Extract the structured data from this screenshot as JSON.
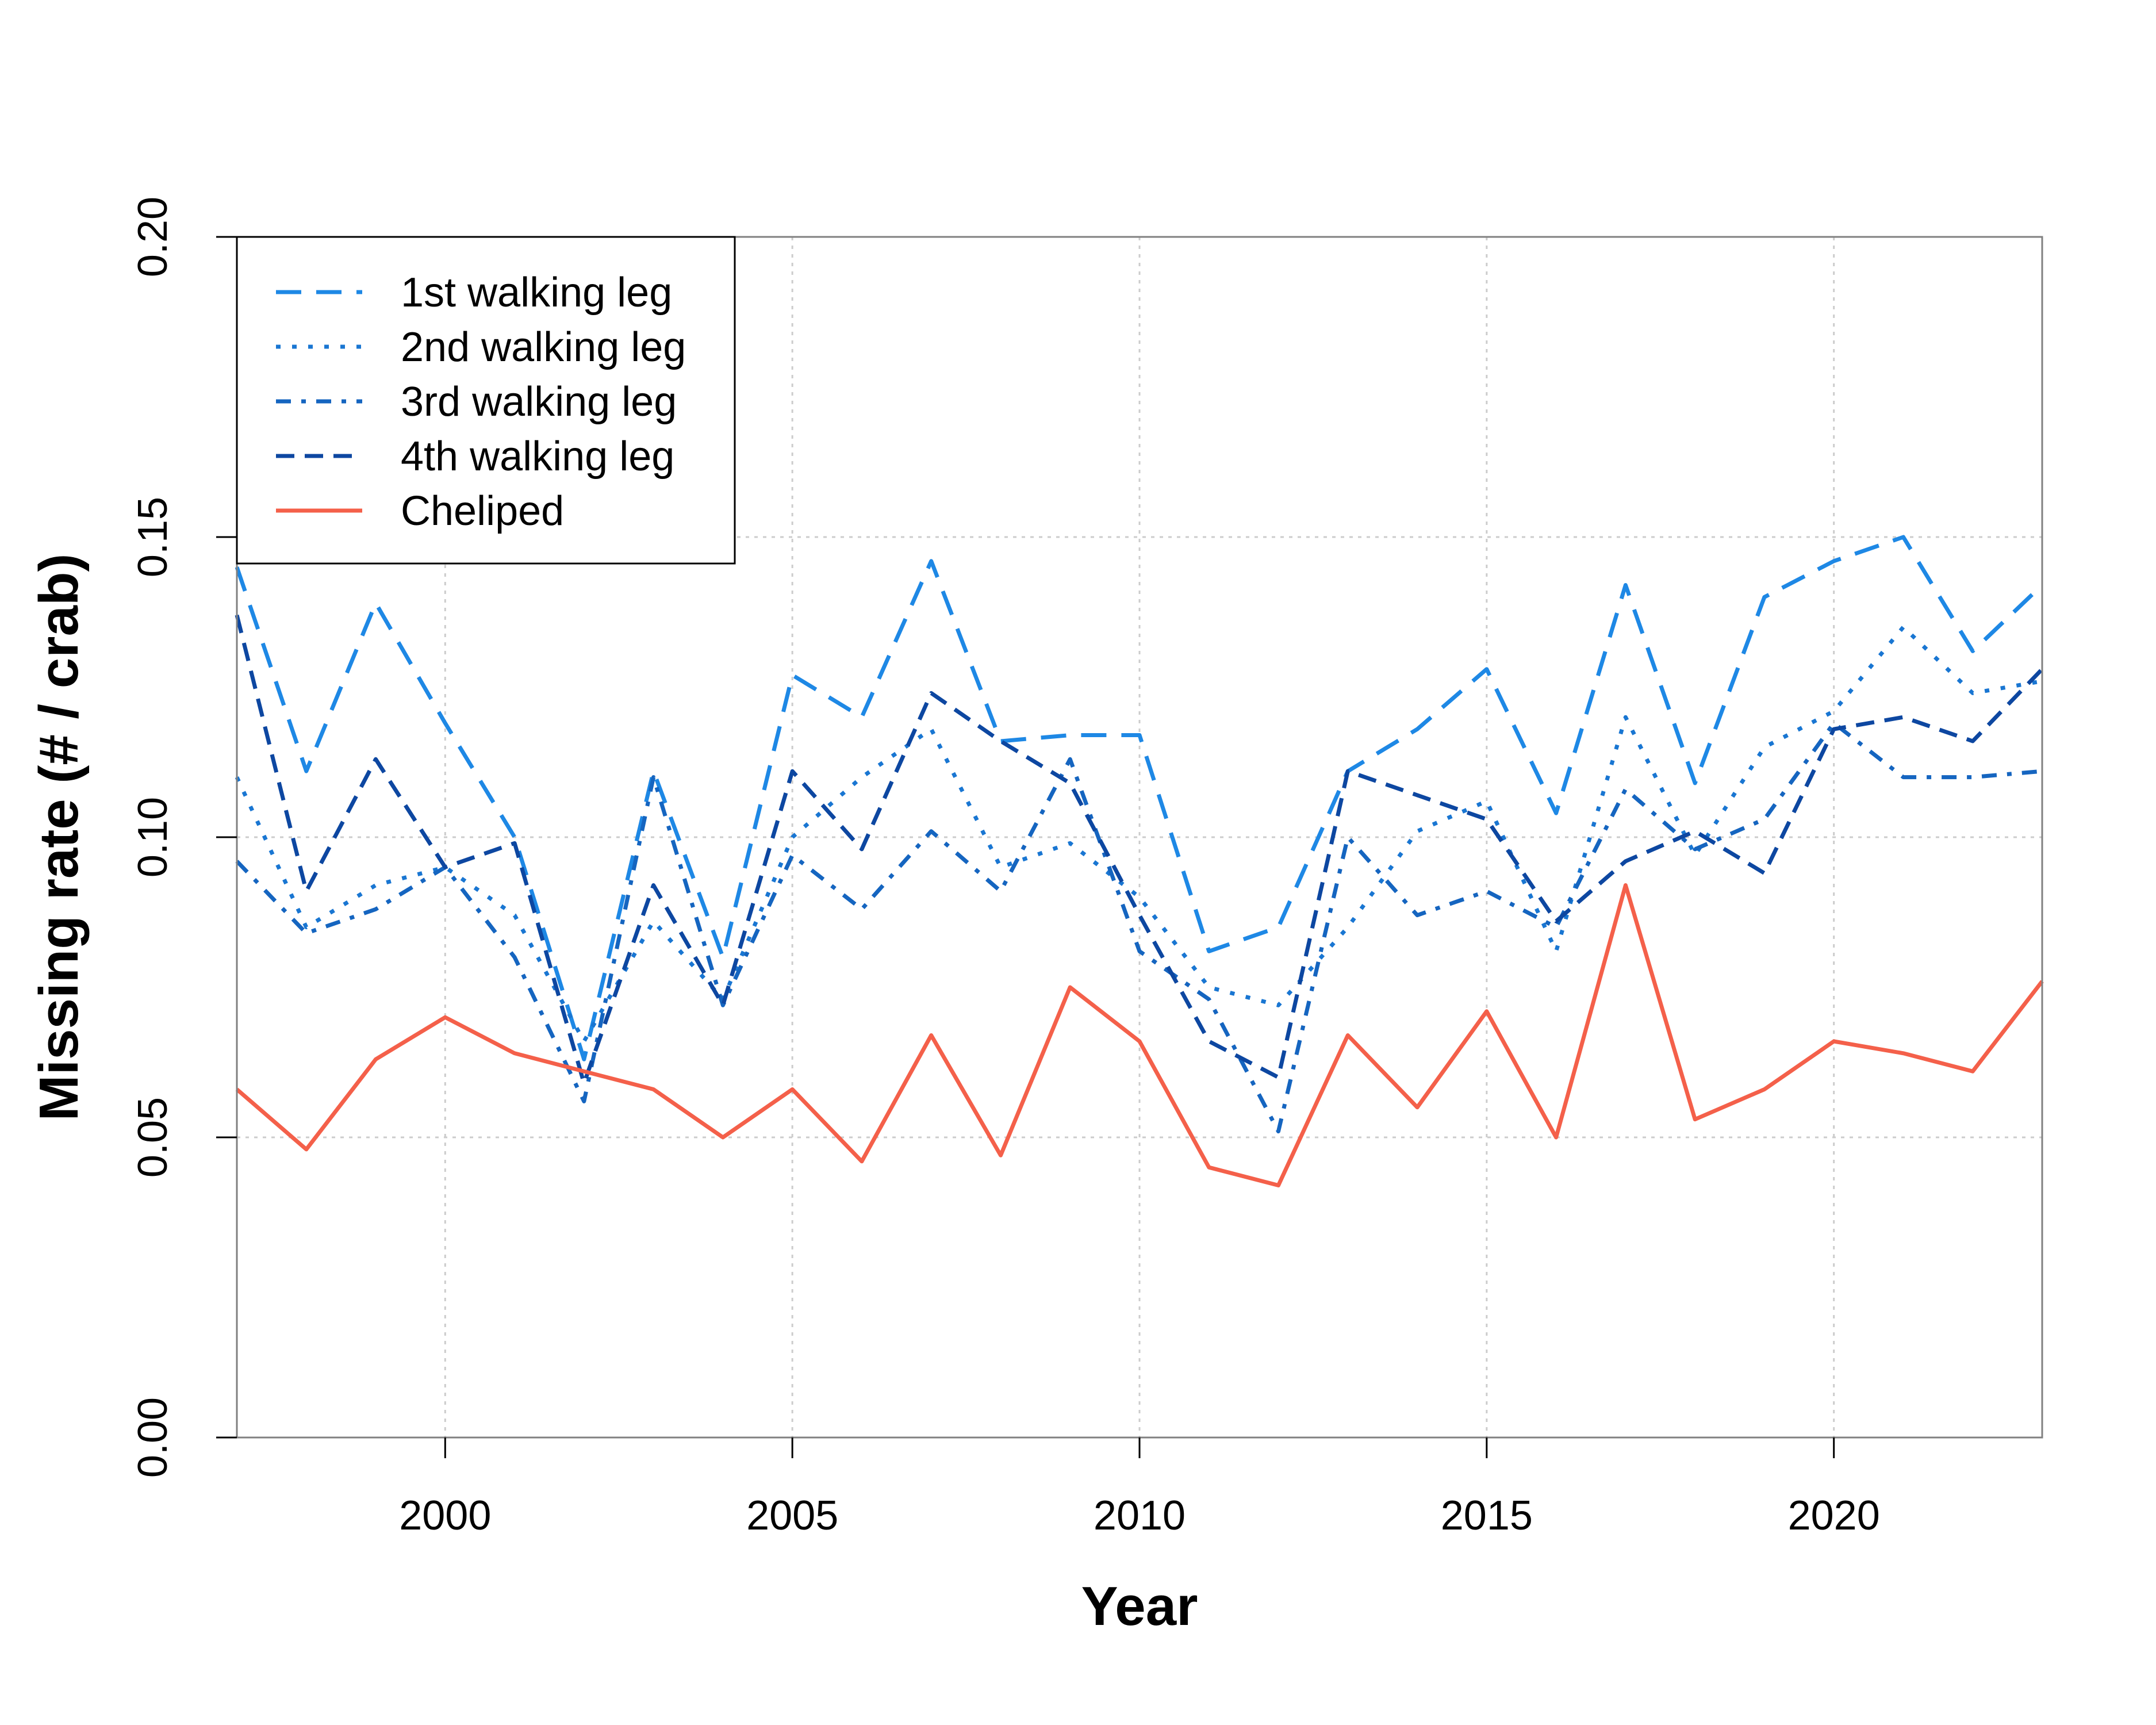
{
  "chart_data": {
    "type": "line",
    "title": "",
    "xlabel": "Year",
    "ylabel": "Missing rate (# / crab)",
    "xlim": [
      1997,
      2023
    ],
    "ylim": [
      0,
      0.2
    ],
    "x_ticks": [
      2000,
      2005,
      2010,
      2015,
      2020
    ],
    "y_ticks": [
      "0.00",
      "0.05",
      "0.10",
      "0.15",
      "0.20"
    ],
    "grid": true,
    "legend_position": "top-left",
    "x": [
      1997,
      1998,
      1999,
      2000,
      2001,
      2002,
      2003,
      2004,
      2005,
      2006,
      2007,
      2008,
      2009,
      2010,
      2011,
      2012,
      2013,
      2014,
      2015,
      2016,
      2017,
      2018,
      2019,
      2020,
      2021,
      2022,
      2023
    ],
    "series": [
      {
        "name": "1st walking leg",
        "color": "#1E88E5",
        "dash": "long-dash",
        "values": [
          0.145,
          0.111,
          0.139,
          0.119,
          0.1,
          0.063,
          0.111,
          0.08,
          0.127,
          0.12,
          0.146,
          0.116,
          0.117,
          0.117,
          0.081,
          0.085,
          0.111,
          0.118,
          0.128,
          0.104,
          0.142,
          0.109,
          0.14,
          0.146,
          0.15,
          0.131,
          0.142
        ]
      },
      {
        "name": "2nd walking leg",
        "color": "#1976D2",
        "dash": "dotted",
        "values": [
          0.11,
          0.085,
          0.092,
          0.095,
          0.087,
          0.066,
          0.086,
          0.073,
          0.1,
          0.11,
          0.118,
          0.095,
          0.099,
          0.09,
          0.075,
          0.072,
          0.085,
          0.101,
          0.106,
          0.081,
          0.12,
          0.097,
          0.115,
          0.121,
          0.135,
          0.124,
          0.126
        ]
      },
      {
        "name": "3rd walking leg",
        "color": "#1565C0",
        "dash": "dash-dot",
        "values": [
          0.096,
          0.084,
          0.088,
          0.095,
          0.08,
          0.056,
          0.11,
          0.072,
          0.097,
          0.088,
          0.101,
          0.091,
          0.113,
          0.081,
          0.073,
          0.051,
          0.1,
          0.087,
          0.091,
          0.085,
          0.108,
          0.098,
          0.103,
          0.119,
          0.11,
          0.11,
          0.111
        ]
      },
      {
        "name": "4th walking leg",
        "color": "#0D47A1",
        "dash": "dashed",
        "values": [
          0.137,
          0.091,
          0.113,
          0.095,
          0.099,
          0.059,
          0.092,
          0.072,
          0.111,
          0.098,
          0.124,
          0.116,
          0.109,
          0.087,
          0.066,
          0.06,
          0.111,
          0.107,
          0.103,
          0.086,
          0.096,
          0.101,
          0.094,
          0.118,
          0.12,
          0.116,
          0.128
        ]
      },
      {
        "name": "Cheliped",
        "color": "#F4604A",
        "dash": "solid",
        "values": [
          0.058,
          0.048,
          0.063,
          0.07,
          0.064,
          0.061,
          0.058,
          0.05,
          0.058,
          0.046,
          0.067,
          0.047,
          0.075,
          0.066,
          0.045,
          0.042,
          0.067,
          0.055,
          0.071,
          0.05,
          0.092,
          0.053,
          0.058,
          0.066,
          0.064,
          0.061,
          0.076
        ]
      }
    ]
  }
}
